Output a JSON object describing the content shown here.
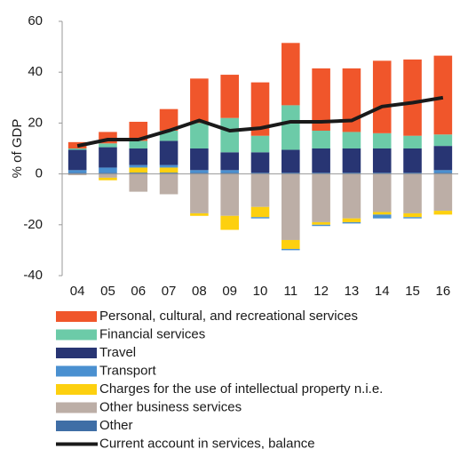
{
  "chart_data": {
    "type": "bar",
    "stacked": true,
    "y_label": "% of GDP",
    "categories": [
      "04",
      "05",
      "06",
      "07",
      "08",
      "09",
      "10",
      "11",
      "12",
      "13",
      "14",
      "15",
      "16"
    ],
    "ylim": [
      -40,
      60
    ],
    "yticks": [
      -40,
      -20,
      0,
      20,
      40,
      60
    ],
    "series": [
      {
        "name": "Personal, cultural, and recreational services",
        "color": "#f0562b",
        "values": [
          2.5,
          4.5,
          7.5,
          8.5,
          17.5,
          17,
          21,
          24.5,
          24.5,
          25,
          28.5,
          30,
          31
        ]
      },
      {
        "name": "Financial services",
        "color": "#6ccba8",
        "values": [
          0.5,
          1.5,
          3,
          4,
          10,
          13.5,
          6.5,
          17.5,
          7,
          6.5,
          6,
          5,
          4.5
        ]
      },
      {
        "name": "Travel",
        "color": "#283573",
        "values": [
          8,
          8,
          6.5,
          9.5,
          8.5,
          7,
          8,
          9,
          9.5,
          9.5,
          9.5,
          9.5,
          9.5
        ]
      },
      {
        "name": "Transport",
        "color": "#4a90d0",
        "values": [
          1,
          2,
          1,
          1,
          1,
          1,
          -0.5,
          -0.5,
          -0.5,
          -0.5,
          -1.5,
          -0.5,
          1
        ]
      },
      {
        "name": "Charges for the use of intellectual property n.i.e.",
        "color": "#fdd00f",
        "values": [
          0,
          -1,
          2,
          2,
          -1,
          -5.5,
          -4,
          -3.5,
          -1,
          -1.5,
          -1,
          -1.5,
          -1.5
        ]
      },
      {
        "name": "Other business services",
        "color": "#bcaea6",
        "values": [
          -0.5,
          -1.5,
          -7,
          -8,
          -15.5,
          -16.5,
          -13,
          -26,
          -19,
          -17.5,
          -15,
          -15.5,
          -14.5
        ]
      },
      {
        "name": "Other",
        "color": "#3f6ea6",
        "values": [
          0.5,
          0.5,
          0.5,
          0.5,
          0.5,
          0.5,
          0.5,
          0.5,
          0.5,
          0.5,
          0.5,
          0.5,
          0.5
        ]
      },
      {
        "name": "Current account in services, balance",
        "type": "line",
        "color": "#1a1a1a",
        "values": [
          11,
          13.5,
          13.5,
          17,
          21,
          17,
          18,
          20.5,
          20.5,
          21,
          26.5,
          28,
          30
        ]
      }
    ]
  }
}
